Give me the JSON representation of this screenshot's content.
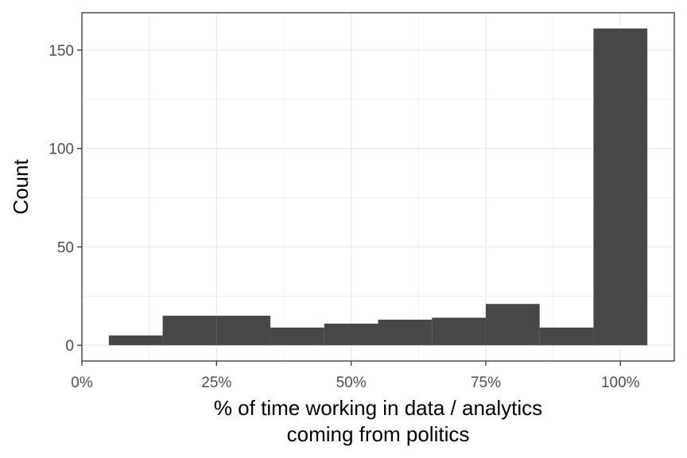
{
  "chart_data": {
    "type": "bar",
    "xlabel_lines": [
      "% of time working in data / analytics",
      "coming from politics"
    ],
    "ylabel": "Count",
    "x_tick_labels": [
      "0%",
      "25%",
      "50%",
      "75%",
      "100%"
    ],
    "x_ticks": [
      0,
      25,
      50,
      75,
      100
    ],
    "y_ticks": [
      0,
      50,
      100,
      150
    ],
    "xlim": [
      0,
      110
    ],
    "ylim": [
      -8,
      169
    ],
    "grid": true,
    "bar_color": "#474747",
    "bins": [
      {
        "x0": 5,
        "x1": 15,
        "count": 5
      },
      {
        "x0": 15,
        "x1": 25,
        "count": 15
      },
      {
        "x0": 25,
        "x1": 35,
        "count": 15
      },
      {
        "x0": 35,
        "x1": 45,
        "count": 9
      },
      {
        "x0": 45,
        "x1": 55,
        "count": 11
      },
      {
        "x0": 55,
        "x1": 65,
        "count": 13
      },
      {
        "x0": 65,
        "x1": 75,
        "count": 14
      },
      {
        "x0": 75,
        "x1": 85,
        "count": 21
      },
      {
        "x0": 85,
        "x1": 95,
        "count": 9
      },
      {
        "x0": 95,
        "x1": 105,
        "count": 161
      }
    ]
  }
}
